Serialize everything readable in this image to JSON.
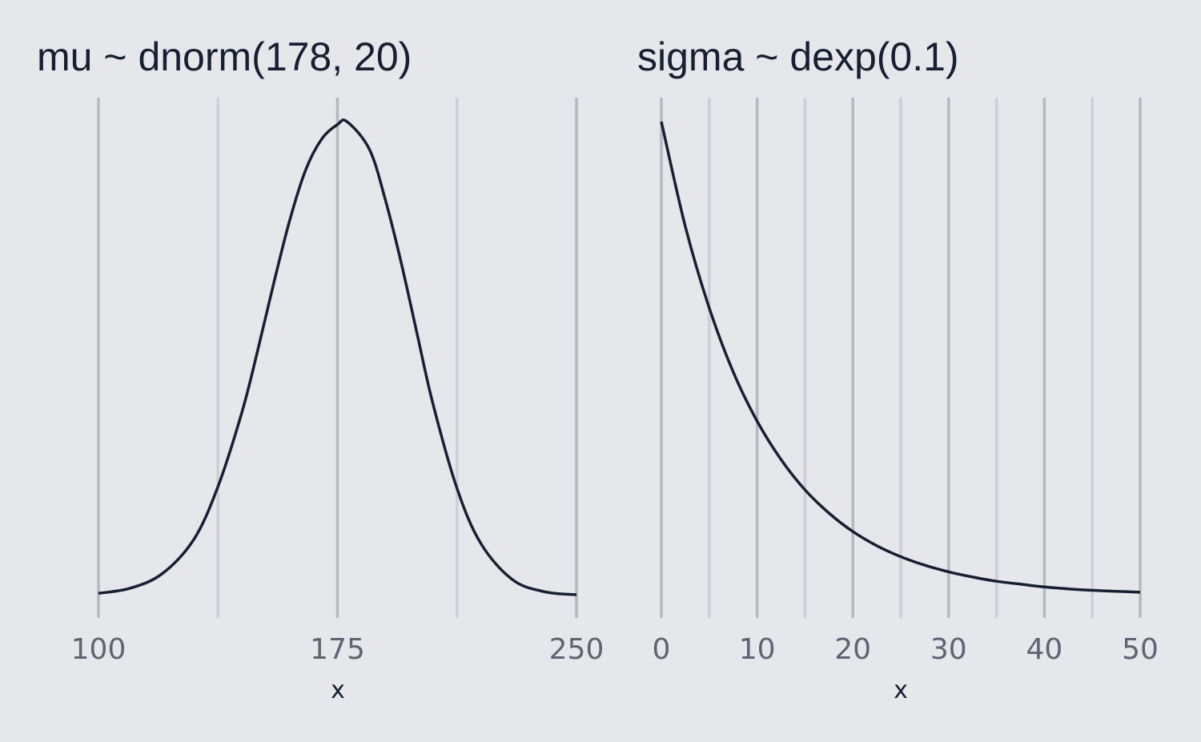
{
  "chart_data": [
    {
      "type": "line",
      "title": "mu ~ dnorm(178, 20)",
      "xlabel": "x",
      "ylabel": "",
      "distribution": {
        "family": "normal",
        "mean": 178,
        "sd": 20
      },
      "xlim": [
        100,
        250
      ],
      "x_ticks": [
        100,
        175,
        250
      ],
      "x_minor_ticks": [
        137.5,
        212.5
      ],
      "y_axis_shown": false,
      "grid": "vertical",
      "x": [
        100,
        110,
        120,
        130,
        137.5,
        145,
        150,
        155,
        160,
        165,
        170,
        175,
        178,
        185,
        190,
        195,
        200,
        205,
        212.5,
        220,
        230,
        240,
        250
      ],
      "y": [
        9e-05,
        0.00031,
        0.00092,
        0.00238,
        0.00459,
        0.00771,
        0.01034,
        0.01315,
        0.01579,
        0.01791,
        0.01921,
        0.01983,
        0.01995,
        0.01879,
        0.01667,
        0.01401,
        0.01101,
        0.00805,
        0.00451,
        0.00219,
        0.00066,
        0.00016,
        3e-05
      ]
    },
    {
      "type": "line",
      "title": "sigma ~ dexp(0.1)",
      "xlabel": "x",
      "ylabel": "",
      "distribution": {
        "family": "exponential",
        "rate": 0.1
      },
      "xlim": [
        0,
        50
      ],
      "x_ticks": [
        0,
        10,
        20,
        30,
        40,
        50
      ],
      "x_minor_ticks": [
        5,
        15,
        25,
        35,
        45
      ],
      "y_axis_shown": false,
      "grid": "vertical",
      "x": [
        0,
        2.5,
        5,
        7.5,
        10,
        12.5,
        15,
        17.5,
        20,
        22.5,
        25,
        27.5,
        30,
        32.5,
        35,
        37.5,
        40,
        42.5,
        45,
        47.5,
        50
      ],
      "y": [
        0.1,
        0.0779,
        0.0607,
        0.0472,
        0.0368,
        0.0287,
        0.0223,
        0.0174,
        0.0135,
        0.0105,
        0.0082,
        0.0064,
        0.005,
        0.0039,
        0.003,
        0.0024,
        0.0018,
        0.0014,
        0.0011,
        0.0009,
        0.0007
      ]
    }
  ]
}
